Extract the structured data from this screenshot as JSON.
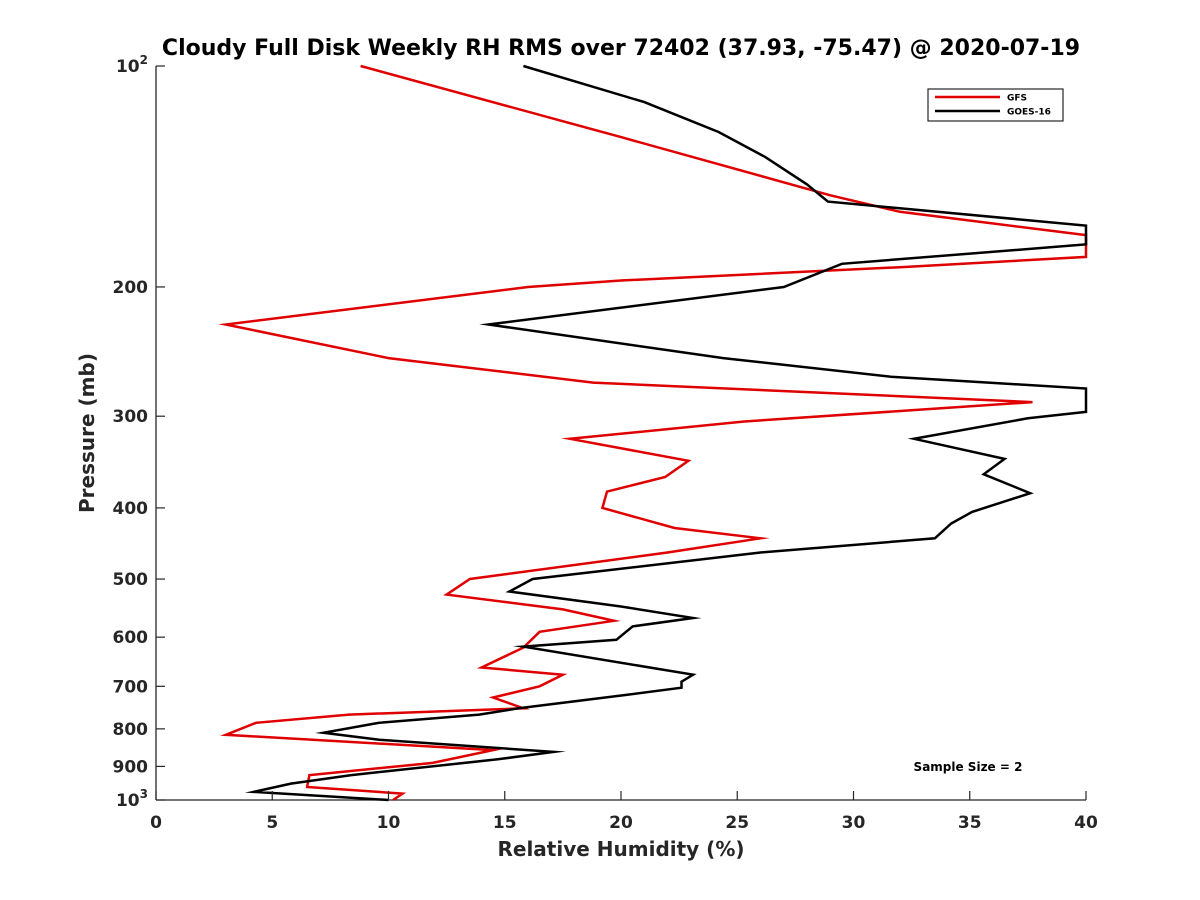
{
  "chart_data": {
    "type": "line",
    "title": "Cloudy Full Disk Weekly RH RMS over 72402 (37.93, -75.47) @ 2020-07-19",
    "xlabel": "Relative Humidity (%)",
    "ylabel": "Pressure (mb)",
    "xlim": [
      0,
      40
    ],
    "ylim": [
      100,
      1000
    ],
    "yscale": "log",
    "y_reversed": true,
    "x_ticks": [
      "0",
      "5",
      "10",
      "15",
      "20",
      "25",
      "30",
      "35",
      "40"
    ],
    "y_ticks": [
      {
        "value": 100,
        "label": "10",
        "sup": "2"
      },
      {
        "value": 200,
        "label": "200",
        "sup": ""
      },
      {
        "value": 300,
        "label": "300",
        "sup": ""
      },
      {
        "value": 400,
        "label": "400",
        "sup": ""
      },
      {
        "value": 500,
        "label": "500",
        "sup": ""
      },
      {
        "value": 600,
        "label": "600",
        "sup": ""
      },
      {
        "value": 700,
        "label": "700",
        "sup": ""
      },
      {
        "value": 800,
        "label": "800",
        "sup": ""
      },
      {
        "value": 900,
        "label": "900",
        "sup": ""
      },
      {
        "value": 1000,
        "label": "10",
        "sup": "3"
      }
    ],
    "grid": false,
    "legend_position": "top-right",
    "annotation": "Sample Size = 2",
    "series": [
      {
        "name": "GFS",
        "color": "#e00000",
        "points": [
          [
            8.8,
            100
          ],
          [
            20,
            125
          ],
          [
            29,
            150
          ],
          [
            32,
            158
          ],
          [
            40,
            170
          ],
          [
            40,
            182
          ],
          [
            32,
            188
          ],
          [
            20,
            196
          ],
          [
            16,
            200
          ],
          [
            3,
            225
          ],
          [
            10,
            250
          ],
          [
            18.8,
            270
          ],
          [
            37.7,
            287
          ],
          [
            25.3,
            305
          ],
          [
            17.8,
            322
          ],
          [
            22.9,
            345
          ],
          [
            21.9,
            363
          ],
          [
            19.4,
            380
          ],
          [
            19.2,
            400
          ],
          [
            22.3,
            426
          ],
          [
            26,
            440
          ],
          [
            22,
            460
          ],
          [
            13.5,
            500
          ],
          [
            12.5,
            525
          ],
          [
            17.5,
            550
          ],
          [
            19.7,
            570
          ],
          [
            16.5,
            590
          ],
          [
            15.8,
            620
          ],
          [
            14,
            660
          ],
          [
            17.5,
            675
          ],
          [
            16.5,
            700
          ],
          [
            14.5,
            725
          ],
          [
            15.8,
            750
          ],
          [
            8.3,
            765
          ],
          [
            4.3,
            785
          ],
          [
            3,
            815
          ],
          [
            14.5,
            855
          ],
          [
            11.9,
            890
          ],
          [
            6.6,
            925
          ],
          [
            6.5,
            960
          ],
          [
            10.6,
            980
          ],
          [
            10.2,
            1000
          ]
        ]
      },
      {
        "name": "GOES-16",
        "color": "#000000",
        "points": [
          [
            15.8,
            100
          ],
          [
            21,
            112
          ],
          [
            24.2,
            123
          ],
          [
            26.2,
            133
          ],
          [
            28,
            145
          ],
          [
            28.9,
            153
          ],
          [
            40,
            165
          ],
          [
            40,
            175
          ],
          [
            29.5,
            186
          ],
          [
            27,
            200
          ],
          [
            14.3,
            225
          ],
          [
            24.4,
            250
          ],
          [
            31.6,
            265
          ],
          [
            40,
            275
          ],
          [
            40,
            296
          ],
          [
            37.5,
            302
          ],
          [
            32.6,
            322
          ],
          [
            36.5,
            343
          ],
          [
            35.6,
            360
          ],
          [
            37.6,
            382
          ],
          [
            35.1,
            405
          ],
          [
            34.2,
            420
          ],
          [
            33.5,
            440
          ],
          [
            26,
            460
          ],
          [
            16.2,
            500
          ],
          [
            15.2,
            520
          ],
          [
            20,
            545
          ],
          [
            23.1,
            565
          ],
          [
            20.5,
            580
          ],
          [
            19.8,
            605
          ],
          [
            15.8,
            618
          ],
          [
            23.1,
            675
          ],
          [
            22.6,
            690
          ],
          [
            22.6,
            703
          ],
          [
            20.1,
            720
          ],
          [
            15.6,
            750
          ],
          [
            13.9,
            765
          ],
          [
            9.6,
            785
          ],
          [
            7.2,
            810
          ],
          [
            9.6,
            828
          ],
          [
            17.1,
            860
          ],
          [
            14.7,
            880
          ],
          [
            8.4,
            925
          ],
          [
            5.8,
            950
          ],
          [
            4.2,
            975
          ],
          [
            10,
            1000
          ]
        ]
      }
    ]
  }
}
